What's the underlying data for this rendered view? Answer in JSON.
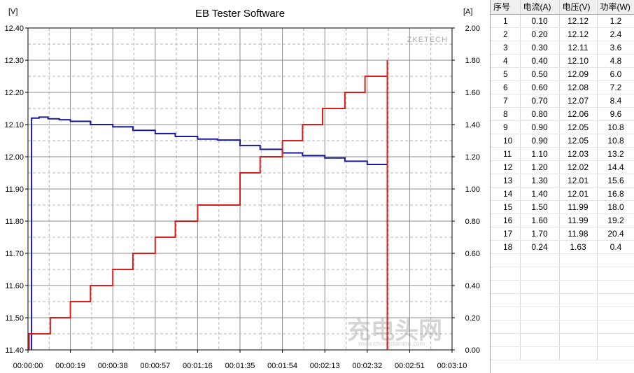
{
  "chart_data": {
    "type": "line",
    "title": "EB Tester Software",
    "brand_label": "ZKETECH",
    "y_left_unit": "[V]",
    "y_right_unit": "[A]",
    "x_ticks": [
      "00:00:00",
      "00:00:19",
      "00:00:38",
      "00:00:57",
      "00:01:16",
      "00:01:35",
      "00:01:54",
      "00:02:13",
      "00:02:32",
      "00:02:51",
      "00:03:10"
    ],
    "y_left_ticks": [
      "12.40",
      "12.30",
      "12.20",
      "12.10",
      "12.00",
      "11.90",
      "11.80",
      "11.70",
      "11.60",
      "11.50",
      "11.40"
    ],
    "y_right_ticks": [
      "2.00",
      "1.80",
      "1.60",
      "1.40",
      "1.20",
      "1.00",
      "0.80",
      "0.60",
      "0.40",
      "0.20",
      "0.00"
    ],
    "xlim_seconds": [
      0,
      190
    ],
    "ylim_left": [
      11.4,
      12.4
    ],
    "ylim_right": [
      0.0,
      2.0
    ],
    "grid": true,
    "voltage_color": "#1a1a9c",
    "current_color": "#dd1c1c",
    "series": [
      {
        "axis": "left",
        "points": [
          [
            1.6,
            11.4
          ],
          [
            1.6,
            12.12
          ],
          [
            5,
            12.12
          ],
          [
            5,
            12.123
          ],
          [
            9,
            12.123
          ],
          [
            9,
            12.118
          ],
          [
            14,
            12.118
          ],
          [
            14,
            12.115
          ],
          [
            19,
            12.115
          ],
          [
            19,
            12.11
          ],
          [
            28,
            12.11
          ],
          [
            28,
            12.1
          ],
          [
            38,
            12.1
          ],
          [
            38,
            12.093
          ],
          [
            47,
            12.093
          ],
          [
            47,
            12.082
          ],
          [
            57,
            12.082
          ],
          [
            57,
            12.072
          ],
          [
            66,
            12.072
          ],
          [
            66,
            12.063
          ],
          [
            76,
            12.063
          ],
          [
            76,
            12.055
          ],
          [
            85,
            12.055
          ],
          [
            85,
            12.052
          ],
          [
            95,
            12.052
          ],
          [
            95,
            12.035
          ],
          [
            104,
            12.035
          ],
          [
            104,
            12.023
          ],
          [
            114,
            12.023
          ],
          [
            114,
            12.012
          ],
          [
            123,
            12.012
          ],
          [
            123,
            12.004
          ],
          [
            133,
            12.004
          ],
          [
            133,
            11.996
          ],
          [
            142,
            11.996
          ],
          [
            142,
            11.986
          ],
          [
            152,
            11.986
          ],
          [
            152,
            11.976
          ],
          [
            161,
            11.976
          ],
          [
            161,
            11.4
          ]
        ]
      },
      {
        "axis": "right",
        "points": [
          [
            0.5,
            0.0
          ],
          [
            0.5,
            0.1
          ],
          [
            10,
            0.1
          ],
          [
            10,
            0.2
          ],
          [
            19,
            0.2
          ],
          [
            19,
            0.3
          ],
          [
            28,
            0.3
          ],
          [
            28,
            0.4
          ],
          [
            38,
            0.4
          ],
          [
            38,
            0.5
          ],
          [
            47,
            0.5
          ],
          [
            47,
            0.6
          ],
          [
            57,
            0.6
          ],
          [
            57,
            0.7
          ],
          [
            66,
            0.7
          ],
          [
            66,
            0.8
          ],
          [
            76,
            0.8
          ],
          [
            76,
            0.9
          ],
          [
            95,
            0.9
          ],
          [
            95,
            1.1
          ],
          [
            104,
            1.1
          ],
          [
            104,
            1.2
          ],
          [
            114,
            1.2
          ],
          [
            114,
            1.3
          ],
          [
            123,
            1.3
          ],
          [
            123,
            1.4
          ],
          [
            132,
            1.4
          ],
          [
            132,
            1.5
          ],
          [
            142,
            1.5
          ],
          [
            142,
            1.6
          ],
          [
            151,
            1.6
          ],
          [
            151,
            1.7
          ],
          [
            161,
            1.7
          ],
          [
            161,
            1.8
          ],
          [
            161,
            0.0
          ]
        ]
      }
    ]
  },
  "table": {
    "headers": [
      "序号",
      "电流(A)",
      "电压(V)",
      "功率(W)"
    ],
    "rows": [
      [
        "1",
        "0.10",
        "12.12",
        "1.2"
      ],
      [
        "2",
        "0.20",
        "12.12",
        "2.4"
      ],
      [
        "3",
        "0.30",
        "12.11",
        "3.6"
      ],
      [
        "4",
        "0.40",
        "12.10",
        "4.8"
      ],
      [
        "5",
        "0.50",
        "12.09",
        "6.0"
      ],
      [
        "6",
        "0.60",
        "12.08",
        "7.2"
      ],
      [
        "7",
        "0.70",
        "12.07",
        "8.4"
      ],
      [
        "8",
        "0.80",
        "12.06",
        "9.6"
      ],
      [
        "9",
        "0.90",
        "12.05",
        "10.8"
      ],
      [
        "10",
        "0.90",
        "12.05",
        "10.8"
      ],
      [
        "11",
        "1.10",
        "12.03",
        "13.2"
      ],
      [
        "12",
        "1.20",
        "12.02",
        "14.4"
      ],
      [
        "13",
        "1.30",
        "12.01",
        "15.6"
      ],
      [
        "14",
        "1.40",
        "12.01",
        "16.8"
      ],
      [
        "15",
        "1.50",
        "11.99",
        "18.0"
      ],
      [
        "16",
        "1.60",
        "11.99",
        "19.2"
      ],
      [
        "17",
        "1.70",
        "11.98",
        "20.4"
      ],
      [
        "18",
        "0.24",
        "1.63",
        "0.4"
      ],
      [
        "",
        "",
        "",
        ""
      ],
      [
        "",
        "",
        "",
        ""
      ],
      [
        "",
        "",
        "",
        ""
      ],
      [
        "",
        "",
        "",
        ""
      ],
      [
        "",
        "",
        "",
        ""
      ],
      [
        "",
        "",
        "",
        ""
      ],
      [
        "",
        "",
        "",
        ""
      ],
      [
        "",
        "",
        "",
        ""
      ]
    ]
  },
  "watermark": {
    "logo_text": "充电头网",
    "url_text": "www.chongdiantou.com"
  }
}
